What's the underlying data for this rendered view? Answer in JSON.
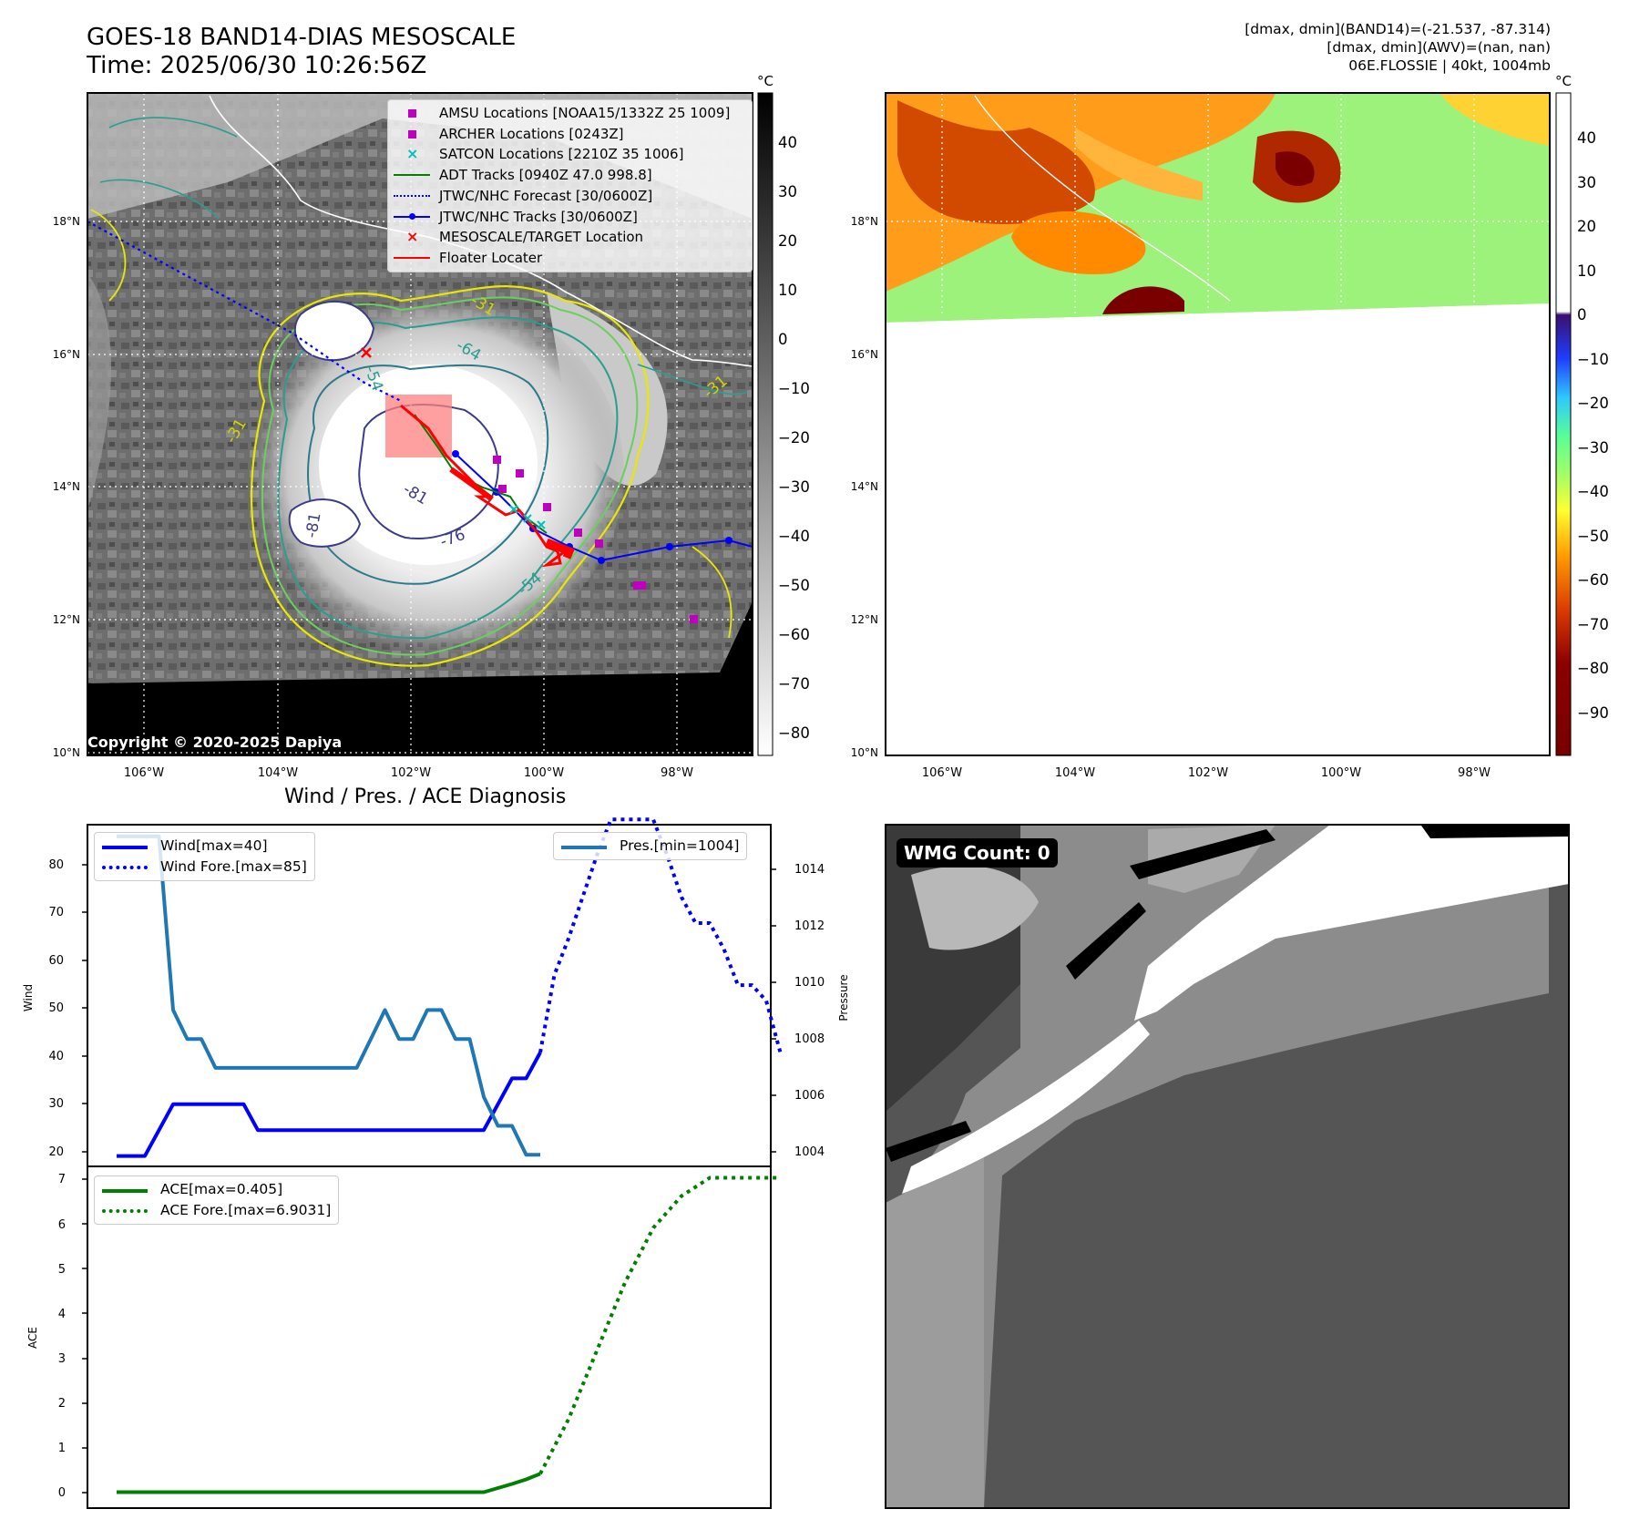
{
  "header": {
    "title_line1": "GOES-18 BAND14-DIAS MESOSCALE",
    "title_line2": "Time: 2025/06/30 10:26:56Z",
    "info_line1": "[dmax, dmin](BAND14)=(-21.537, -87.314)",
    "info_line2": "[dmax, dmin](AWV)=(nan, nan)",
    "info_line3": "06E.FLOSSIE | 40kt, 1004mb"
  },
  "ir_map": {
    "lat_labels": [
      "18°N",
      "16°N",
      "14°N",
      "12°N",
      "10°N"
    ],
    "lon_labels": [
      "106°W",
      "104°W",
      "102°W",
      "100°W",
      "98°W"
    ],
    "contour_labels": [
      "-31",
      "-54",
      "-64",
      "-76",
      "-81"
    ],
    "copyright": "Copyright © 2020-2025 Dapiya",
    "colorbar": {
      "unit": "°C",
      "ticks": [
        "40",
        "30",
        "20",
        "10",
        "0",
        "−10",
        "−20",
        "−30",
        "−40",
        "−50",
        "−60",
        "−70",
        "−80"
      ]
    },
    "legend": [
      {
        "label": "AMSU Locations [NOAA15/1332Z 25 1009]",
        "marker": "square",
        "color": "#bf00bf"
      },
      {
        "label": "ARCHER Locations [0243Z]",
        "marker": "square",
        "color": "#bf00bf"
      },
      {
        "label": "SATCON Locations [2210Z 35 1006]",
        "marker": "x",
        "color": "#00bfbf"
      },
      {
        "label": "ADT Tracks [0940Z 47.0 998.8]",
        "marker": "line",
        "color": "#008000"
      },
      {
        "label": "JTWC/NHC Forecast [30/0600Z]",
        "marker": "dotted",
        "color": "#0000ff"
      },
      {
        "label": "JTWC/NHC Tracks [30/0600Z]",
        "marker": "line-dot",
        "color": "#0000ff"
      },
      {
        "label": "MESOSCALE/TARGET Location",
        "marker": "x",
        "color": "#ff0000"
      },
      {
        "label": "Floater Locater",
        "marker": "line",
        "color": "#ff0000"
      }
    ]
  },
  "awv_map": {
    "lat_labels": [
      "18°N",
      "16°N",
      "14°N",
      "12°N",
      "10°N"
    ],
    "lon_labels": [
      "106°W",
      "104°W",
      "102°W",
      "100°W",
      "98°W"
    ],
    "colorbar": {
      "unit": "°C",
      "ticks": [
        "40",
        "30",
        "20",
        "10",
        "0",
        "−10",
        "−20",
        "−30",
        "−40",
        "−50",
        "−60",
        "−70",
        "−80",
        "−90"
      ]
    }
  },
  "diagnosis": {
    "title": "Wind / Pres. / ACE Diagnosis",
    "wind_ylabel": "Wind",
    "pres_ylabel": "Pressure",
    "ace_ylabel": "ACE",
    "wind_ticks": [
      "80",
      "70",
      "60",
      "50",
      "40",
      "30",
      "20"
    ],
    "pres_ticks": [
      "1014",
      "1012",
      "1010",
      "1008",
      "1006",
      "1004"
    ],
    "ace_ticks": [
      "7",
      "6",
      "5",
      "4",
      "3",
      "2",
      "1",
      "0"
    ],
    "legend_wind": "Wind[max=40]",
    "legend_wind_fore": "Wind Fore.[max=85]",
    "legend_pres": "Pres.[min=1004]",
    "legend_ace": "ACE[max=0.405]",
    "legend_ace_fore": "ACE Fore.[max=6.9031]"
  },
  "wmg": {
    "label": "WMG Count: 0"
  },
  "chart_data": [
    {
      "type": "line",
      "title": "Wind / Pres. / ACE Diagnosis",
      "ylabel": "Wind",
      "ylim": [
        18,
        84
      ],
      "x": [
        0,
        1,
        2,
        3,
        4,
        5,
        6,
        7,
        8,
        9,
        10,
        11,
        12,
        13,
        14,
        15,
        16,
        17,
        18,
        19,
        20,
        21,
        22,
        23,
        24,
        25,
        26,
        27,
        28,
        29,
        30,
        31,
        32,
        33,
        34,
        35,
        36,
        37,
        38,
        39,
        40,
        41,
        42,
        43,
        44,
        45,
        46,
        47
      ],
      "series": [
        {
          "name": "Wind[max=40]",
          "color": "#0000ff",
          "style": "solid",
          "x": [
            0,
            1,
            2,
            3,
            4,
            5,
            6,
            7,
            8,
            9,
            10,
            11,
            12,
            13,
            14,
            15,
            16,
            17,
            18,
            19,
            20,
            21,
            22,
            23,
            24,
            25,
            26,
            27,
            28,
            29,
            30
          ],
          "values": [
            20,
            20,
            20,
            25,
            30,
            30,
            30,
            30,
            30,
            30,
            25,
            25,
            25,
            25,
            25,
            25,
            25,
            25,
            25,
            25,
            25,
            25,
            25,
            25,
            25,
            25,
            25,
            30,
            35,
            35,
            40
          ]
        },
        {
          "name": "Wind Fore.[max=85]",
          "color": "#0000ff",
          "style": "dotted",
          "x": [
            30,
            31,
            32,
            33,
            34,
            35,
            36,
            37,
            38,
            39,
            40,
            41,
            42,
            43,
            44,
            45,
            46,
            47
          ],
          "values": [
            40,
            55,
            62,
            70,
            78,
            85,
            85,
            85,
            85,
            78,
            70,
            65,
            65,
            60,
            53,
            53,
            50,
            40
          ]
        }
      ]
    },
    {
      "type": "line",
      "ylabel": "Pressure",
      "ylim": [
        1003.6,
        1015.4
      ],
      "series": [
        {
          "name": "Pres.[min=1004]",
          "color": "#1f77b4",
          "style": "solid",
          "x": [
            0,
            1,
            2,
            3,
            4,
            5,
            6,
            7,
            8,
            9,
            10,
            11,
            12,
            13,
            14,
            15,
            16,
            17,
            18,
            19,
            20,
            21,
            22,
            23,
            24,
            25,
            26,
            27,
            28,
            29,
            30
          ],
          "values": [
            1015,
            1015,
            1015,
            1015,
            1009,
            1008,
            1008,
            1007,
            1007,
            1007,
            1007,
            1007,
            1007,
            1007,
            1007,
            1007,
            1007,
            1007,
            1008,
            1009,
            1008,
            1008,
            1009,
            1009,
            1008,
            1008,
            1006,
            1005,
            1005,
            1004,
            1004
          ]
        }
      ]
    },
    {
      "type": "line",
      "ylabel": "ACE",
      "ylim": [
        -0.35,
        7.15
      ],
      "series": [
        {
          "name": "ACE[max=0.405]",
          "color": "#008000",
          "style": "solid",
          "x": [
            0,
            5,
            10,
            15,
            20,
            25,
            26,
            27,
            28,
            29,
            30
          ],
          "values": [
            0,
            0,
            0,
            0,
            0,
            0,
            0,
            0.09,
            0.18,
            0.28,
            0.405
          ]
        },
        {
          "name": "ACE Fore.[max=6.9031]",
          "color": "#008000",
          "style": "dotted",
          "x": [
            30,
            32,
            34,
            36,
            38,
            40,
            42,
            44,
            45,
            47
          ],
          "values": [
            0.405,
            1.6,
            3.1,
            4.6,
            5.8,
            6.5,
            6.9,
            6.9,
            6.9,
            6.9
          ]
        }
      ]
    }
  ]
}
